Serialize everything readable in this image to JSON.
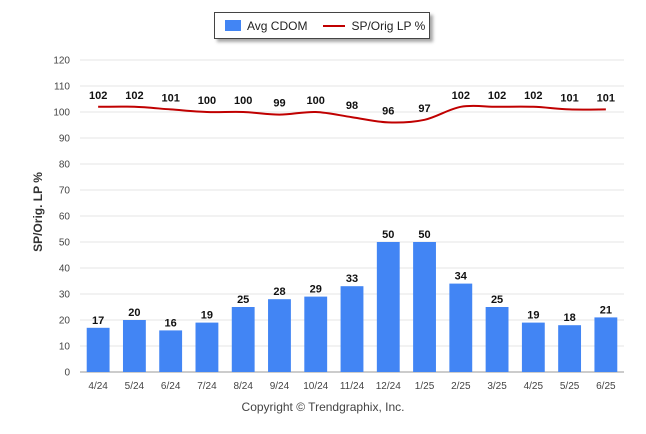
{
  "legend": {
    "bar_label": "Avg CDOM",
    "line_label": "SP/Orig LP %"
  },
  "copyright": "Copyright © Trendgraphix, Inc.",
  "chart_data": {
    "type": "bar",
    "categories": [
      "4/24",
      "5/24",
      "6/24",
      "7/24",
      "8/24",
      "9/24",
      "10/24",
      "11/24",
      "12/24",
      "1/25",
      "2/25",
      "3/25",
      "4/25",
      "5/25",
      "6/25"
    ],
    "series": [
      {
        "name": "Avg CDOM",
        "type": "bar",
        "color": "#4285f4",
        "values": [
          17,
          20,
          16,
          19,
          25,
          28,
          29,
          33,
          50,
          50,
          34,
          25,
          19,
          18,
          21
        ]
      },
      {
        "name": "SP/Orig LP %",
        "type": "line",
        "color": "#c00000",
        "values": [
          102,
          102,
          101,
          100,
          100,
          99,
          100,
          98,
          96,
          97,
          102,
          102,
          102,
          101,
          101
        ]
      }
    ],
    "ylabel": "SP/Orig. LP %",
    "yticks": [
      0,
      10,
      20,
      30,
      40,
      50,
      60,
      70,
      80,
      90,
      100,
      110,
      120
    ],
    "ylim": [
      0,
      120
    ],
    "grid": true,
    "legend_position": "top-center"
  }
}
